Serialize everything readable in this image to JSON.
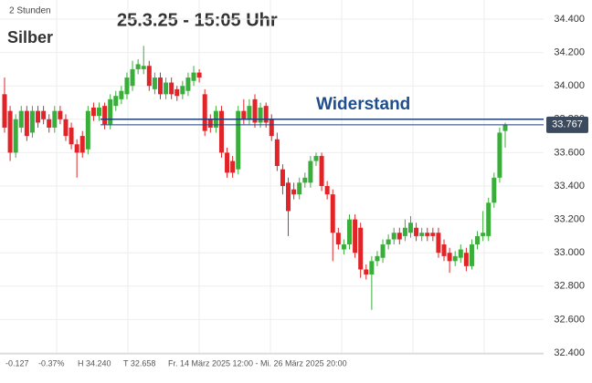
{
  "chart_data": {
    "type": "candlestick",
    "timeframe": "2 Stunden",
    "title": "25.3.25 - 15:05 Uhr",
    "instrument": "Silber",
    "annotation": "Widerstand",
    "resistance": 33.8,
    "current_price": {
      "value": 33.767,
      "label": "33.767"
    },
    "footer": {
      "change": "-0.127",
      "change_pct": "-0.37%",
      "high": "H 34.240",
      "low": "T 32.658",
      "range": "Fr. 14 März 2025 12:00 - Mi. 26 März 2025 20:00"
    },
    "up_color": "#3aae3a",
    "down_color": "#e02428",
    "ylim": [
      32.4,
      34.4
    ],
    "yticks": [
      {
        "value": 32.4,
        "label": "32.400"
      },
      {
        "value": 32.6,
        "label": "32.600"
      },
      {
        "value": 32.8,
        "label": "32.800"
      },
      {
        "value": 33.0,
        "label": "33.000"
      },
      {
        "value": 33.2,
        "label": "33.200"
      },
      {
        "value": 33.4,
        "label": "33.400"
      },
      {
        "value": 33.6,
        "label": "33.600"
      },
      {
        "value": 33.8,
        "label": "33.800"
      },
      {
        "value": 34.0,
        "label": "34.000"
      },
      {
        "value": 34.2,
        "label": "34.200"
      },
      {
        "value": 34.4,
        "label": "34.400"
      }
    ],
    "open": [
      33.95,
      33.85,
      33.6,
      33.75,
      33.85,
      33.72,
      33.85,
      33.85,
      33.8,
      33.75,
      33.85,
      33.8,
      33.75,
      33.65,
      33.7,
      33.62,
      33.87,
      33.82,
      33.88,
      33.77,
      33.88,
      33.92,
      33.95,
      34.0,
      34.1,
      34.1,
      34.12,
      33.98,
      34.05,
      33.95,
      34.02,
      33.98,
      33.95,
      33.97,
      34.03,
      34.08,
      33.95,
      33.8,
      33.75,
      33.85,
      33.6,
      33.55,
      33.5,
      33.85,
      33.8,
      33.92,
      33.78,
      33.88,
      33.8,
      33.68,
      33.5,
      33.42,
      33.38,
      33.35,
      33.42,
      33.42,
      33.55,
      33.58,
      33.4,
      33.35,
      33.12,
      33.02,
      33.05,
      33.2,
      33.15,
      32.9,
      32.87,
      32.95,
      32.97,
      33.05,
      33.08,
      33.12,
      33.1,
      33.12,
      33.15,
      33.1,
      33.12,
      33.12,
      33.12,
      33.05,
      33.0,
      32.95,
      32.97,
      33.0,
      32.92,
      33.05,
      33.1,
      33.1,
      33.3,
      33.45,
      33.73
    ],
    "high": [
      34.05,
      33.88,
      33.83,
      33.88,
      33.88,
      33.88,
      33.88,
      33.88,
      33.83,
      33.88,
      33.88,
      33.83,
      33.78,
      33.68,
      33.73,
      33.88,
      33.9,
      33.9,
      33.9,
      33.95,
      33.97,
      34.0,
      34.08,
      34.15,
      34.16,
      34.24,
      34.15,
      34.08,
      34.08,
      34.05,
      34.05,
      34.0,
      34.03,
      34.08,
      34.12,
      34.1,
      33.98,
      33.83,
      33.88,
      33.88,
      33.63,
      33.58,
      33.88,
      33.92,
      33.92,
      33.95,
      33.9,
      33.9,
      33.83,
      33.72,
      33.53,
      33.45,
      33.42,
      33.45,
      33.48,
      33.58,
      33.6,
      33.6,
      33.43,
      33.38,
      33.15,
      33.08,
      33.23,
      33.23,
      33.18,
      32.93,
      32.98,
      33.01,
      33.08,
      33.11,
      33.15,
      33.15,
      33.2,
      33.22,
      33.18,
      33.15,
      33.15,
      33.15,
      33.15,
      33.08,
      33.03,
      33.01,
      33.05,
      33.03,
      33.08,
      33.13,
      33.25,
      33.33,
      33.48,
      33.75,
      33.78
    ],
    "low": [
      33.72,
      33.55,
      33.57,
      33.72,
      33.67,
      33.69,
      33.75,
      33.77,
      33.72,
      33.72,
      33.77,
      33.67,
      33.62,
      33.45,
      33.57,
      33.59,
      33.79,
      33.79,
      33.74,
      33.74,
      33.85,
      33.89,
      33.92,
      33.97,
      34.07,
      34.07,
      33.97,
      33.95,
      33.92,
      33.92,
      33.92,
      33.91,
      33.92,
      33.94,
      34.0,
      34.02,
      33.7,
      33.72,
      33.72,
      33.57,
      33.45,
      33.45,
      33.47,
      33.77,
      33.77,
      33.75,
      33.75,
      33.75,
      33.67,
      33.49,
      33.35,
      33.1,
      33.32,
      33.32,
      33.39,
      33.39,
      33.52,
      33.37,
      33.32,
      32.95,
      33.02,
      32.99,
      33.02,
      32.97,
      32.85,
      32.84,
      32.658,
      32.92,
      32.94,
      33.02,
      33.05,
      33.05,
      33.07,
      33.09,
      33.07,
      33.07,
      33.07,
      33.07,
      32.97,
      32.95,
      32.88,
      32.92,
      32.94,
      32.89,
      32.9,
      33.02,
      33.07,
      33.07,
      33.27,
      33.42,
      33.63
    ],
    "close": [
      33.75,
      33.6,
      33.8,
      33.85,
      33.7,
      33.85,
      33.78,
      33.8,
      33.75,
      33.85,
      33.8,
      33.7,
      33.65,
      33.6,
      33.6,
      33.85,
      33.82,
      33.87,
      33.77,
      33.92,
      33.94,
      33.97,
      34.05,
      34.1,
      34.13,
      34.12,
      34.0,
      34.05,
      33.95,
      34.02,
      33.95,
      33.94,
      34.0,
      34.05,
      34.08,
      34.05,
      33.73,
      33.75,
      33.85,
      33.6,
      33.48,
      33.48,
      33.85,
      33.8,
      33.88,
      33.78,
      33.87,
      33.78,
      33.7,
      33.52,
      33.4,
      33.25,
      33.35,
      33.42,
      33.45,
      33.55,
      33.58,
      33.4,
      33.35,
      33.12,
      33.05,
      33.05,
      33.2,
      33.0,
      32.9,
      32.87,
      32.95,
      32.98,
      33.05,
      33.08,
      33.12,
      33.08,
      33.15,
      33.18,
      33.1,
      33.12,
      33.1,
      33.1,
      33.0,
      32.98,
      32.95,
      32.98,
      33.02,
      32.92,
      33.05,
      33.1,
      33.12,
      33.3,
      33.45,
      33.72,
      33.767
    ]
  }
}
